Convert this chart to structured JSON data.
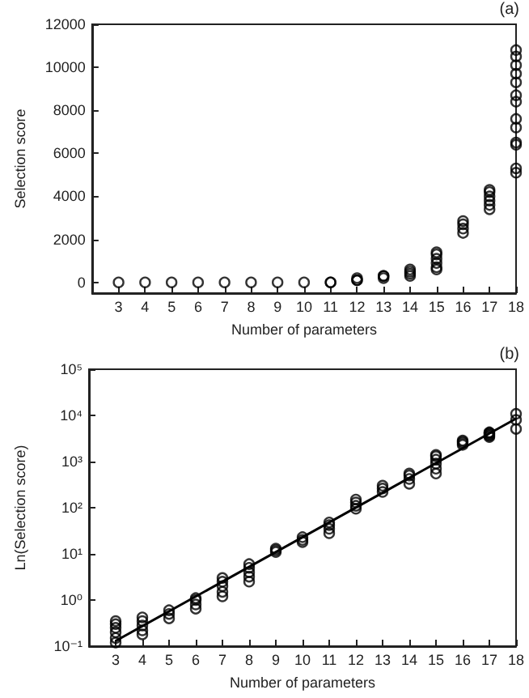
{
  "chart_data": [
    {
      "type": "scatter",
      "xlabel": "Number of parameters",
      "ylabel": "Selection score",
      "annotations": [
        "(a)"
      ],
      "xlim": [
        2,
        18
      ],
      "xticks": [
        3,
        4,
        5,
        6,
        7,
        8,
        9,
        10,
        11,
        12,
        13,
        14,
        15,
        16,
        17,
        18
      ],
      "ylim": [
        -500,
        12000
      ],
      "yticks": [
        0,
        2000,
        4000,
        6000,
        8000,
        10000,
        12000
      ],
      "grid": false,
      "marker": "circle",
      "series": [
        {
          "color": "#000000",
          "x": [
            3,
            4,
            5,
            6,
            7,
            8,
            9,
            10,
            11,
            11,
            12,
            12,
            12,
            13,
            13,
            13,
            14,
            14,
            14,
            14,
            15,
            15,
            15,
            15,
            15,
            15,
            16,
            16,
            16,
            16,
            17,
            17,
            17,
            17,
            17,
            17,
            18,
            18,
            18,
            18,
            18,
            18,
            18,
            18,
            18,
            18,
            18,
            18,
            18
          ],
          "values": [
            0,
            0,
            0,
            0,
            0,
            0,
            0,
            0,
            0,
            0,
            100,
            100,
            200,
            200,
            300,
            300,
            300,
            400,
            500,
            600,
            600,
            700,
            900,
            1100,
            1300,
            1400,
            2300,
            2500,
            2700,
            2850,
            3400,
            3600,
            3800,
            4000,
            4200,
            4300,
            5100,
            5300,
            6400,
            6500,
            7200,
            7600,
            8400,
            8700,
            9300,
            9700,
            10100,
            10500,
            10800
          ]
        }
      ]
    },
    {
      "type": "scatter",
      "xlabel": "Number of parameters",
      "ylabel": "Ln(Selection score)",
      "annotations": [
        "(b)"
      ],
      "xlim": [
        2,
        18
      ],
      "xticks": [
        3,
        4,
        5,
        6,
        7,
        8,
        9,
        10,
        11,
        12,
        13,
        14,
        15,
        16,
        17,
        18
      ],
      "ylim": [
        0.1,
        100000
      ],
      "yticks": [
        {
          "value": 0.1,
          "label": "10⁻¹"
        },
        {
          "value": 1,
          "label": "10⁰"
        },
        {
          "value": 10,
          "label": "10¹"
        },
        {
          "value": 100,
          "label": "10²"
        },
        {
          "value": 1000,
          "label": "10³"
        },
        {
          "value": 10000,
          "label": "10⁴"
        },
        {
          "value": 100000,
          "label": "10⁵"
        }
      ],
      "log": true,
      "grid": false,
      "marker": "circle",
      "series": [
        {
          "color": "#000000",
          "x": [
            3,
            3,
            3,
            3,
            3,
            3,
            4,
            4,
            4,
            4,
            4,
            5,
            5,
            5,
            6,
            6,
            6,
            6,
            7,
            7,
            7,
            7,
            7,
            8,
            8,
            8,
            8,
            8,
            9,
            9,
            9,
            10,
            10,
            10,
            11,
            11,
            11,
            11,
            12,
            12,
            12,
            12,
            13,
            13,
            13,
            14,
            14,
            14,
            14,
            15,
            15,
            15,
            15,
            15,
            15,
            16,
            16,
            16,
            16,
            17,
            17,
            17,
            17,
            17,
            17,
            18,
            18,
            18
          ],
          "values": [
            0.12,
            0.15,
            0.2,
            0.25,
            0.3,
            0.35,
            0.18,
            0.22,
            0.28,
            0.35,
            0.42,
            0.4,
            0.5,
            0.6,
            0.65,
            0.8,
            1.0,
            1.1,
            1.2,
            1.5,
            2.0,
            2.5,
            3.0,
            2.5,
            3.2,
            4,
            5,
            6,
            11,
            12,
            13,
            18,
            20,
            23,
            28,
            35,
            42,
            48,
            95,
            110,
            130,
            150,
            220,
            260,
            300,
            330,
            420,
            500,
            550,
            550,
            700,
            900,
            1100,
            1300,
            1400,
            2300,
            2500,
            2700,
            2850,
            3400,
            3600,
            3800,
            4000,
            4200,
            4300,
            5100,
            8000,
            10800
          ]
        },
        {
          "type": "line",
          "color": "#000000",
          "line_style": "solid",
          "marker": "none",
          "x": [
            3,
            18
          ],
          "values": [
            0.13,
            8500
          ]
        }
      ]
    }
  ]
}
